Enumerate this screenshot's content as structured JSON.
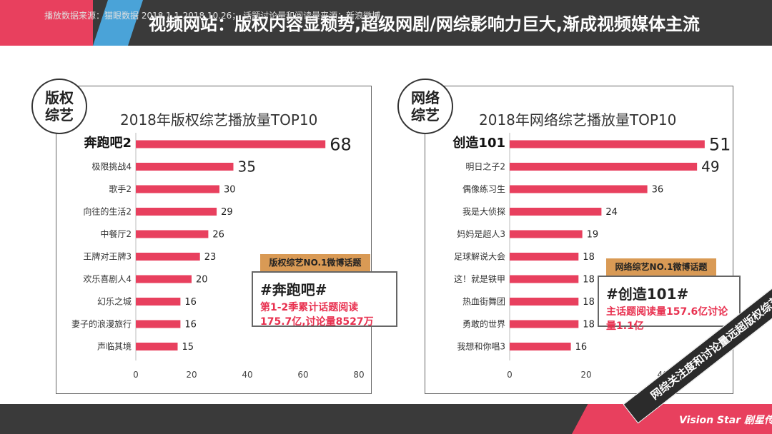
{
  "header": {
    "title": "视频网站：版权内容显颓势,超级网剧/网综影响力巨大,渐成视频媒体主流"
  },
  "left": {
    "badge": "版权\n综艺",
    "tag": "版权综艺NO.1微博话题",
    "topic": "#奔跑吧#",
    "desc": "第1-2季累计话题阅读175.7亿,讨论量8527万"
  },
  "right": {
    "badge": "网络\n综艺",
    "tag": "网络综艺NO.1微博话题",
    "topic": "#创造101#",
    "desc": "主话题阅读量157.6亿讨论量1.1亿"
  },
  "chart_data": [
    {
      "type": "bar",
      "orientation": "horizontal",
      "title": "2018年版权综艺播放量TOP10",
      "categories": [
        "奔跑吧2",
        "极限挑战4",
        "歌手2",
        "向往的生活2",
        "中餐厅2",
        "王牌对王牌3",
        "欢乐喜剧人4",
        "幻乐之城",
        "妻子的浪漫旅行",
        "声临其境"
      ],
      "values": [
        68,
        35,
        30,
        29,
        26,
        23,
        20,
        16,
        16,
        15
      ],
      "xlim": [
        0,
        80
      ],
      "xticks": [
        0,
        20,
        40,
        60,
        80
      ],
      "color": "#e8405e"
    },
    {
      "type": "bar",
      "orientation": "horizontal",
      "title": "2018年网络综艺播放量TOP10",
      "categories": [
        "创造101",
        "明日之子2",
        "偶像练习生",
        "我是大侦探",
        "妈妈是超人3",
        "足球解说大会",
        "这！就是铁甲",
        "热血街舞团",
        "勇敢的世界",
        "我想和你唱3"
      ],
      "values": [
        51,
        49,
        36,
        24,
        19,
        18,
        18,
        18,
        18,
        16
      ],
      "xlim": [
        0,
        60
      ],
      "xticks": [
        0,
        20,
        40
      ],
      "color": "#e8405e"
    }
  ],
  "ribbon": "网综关注度和讨论量远超版权综艺",
  "footer": {
    "text": "播放数据来源：猫眼数据 2018.1.1-2018.10.26；     话题讨论量和阅读量来源：新浪微博",
    "logo": "Vision Star 剧星传媒"
  }
}
